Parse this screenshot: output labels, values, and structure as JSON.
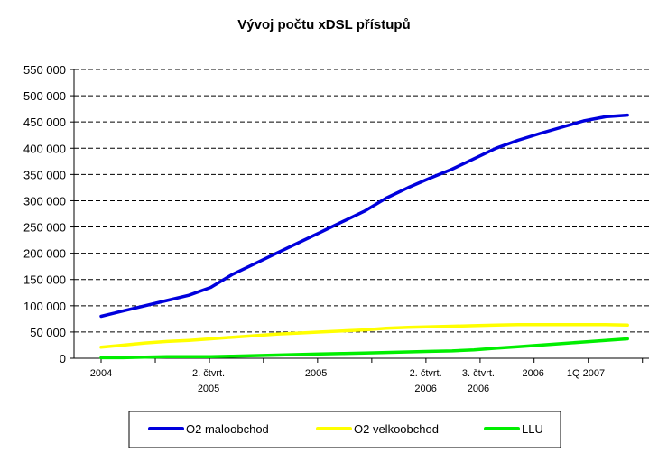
{
  "chart_data": {
    "type": "line",
    "title": "Vývoj počtu xDSL přístupů",
    "xlabel": "",
    "ylabel": "",
    "ylim": [
      0,
      550000
    ],
    "yticks": [
      {
        "value": 0,
        "label": "0"
      },
      {
        "value": 50000,
        "label": "50 000"
      },
      {
        "value": 100000,
        "label": "100 000"
      },
      {
        "value": 150000,
        "label": "150 000"
      },
      {
        "value": 200000,
        "label": "200 000"
      },
      {
        "value": 250000,
        "label": "250 000"
      },
      {
        "value": 300000,
        "label": "300 000"
      },
      {
        "value": 350000,
        "label": "350 000"
      },
      {
        "value": 400000,
        "label": "400 000"
      },
      {
        "value": 450000,
        "label": "450 000"
      },
      {
        "value": 500000,
        "label": "500 000"
      },
      {
        "value": 550000,
        "label": "550 000"
      }
    ],
    "grid": "horizontal dashed",
    "categories": [
      "2004",
      "",
      "",
      "",
      "2. čtvrt. 2005",
      "",
      "",
      "",
      "",
      "2005",
      "",
      "",
      "",
      "",
      "2. čtvrt. 2006",
      "",
      "3. čtvrt. 2006",
      "",
      "",
      "2006",
      "",
      "1Q 2007",
      "",
      "",
      ""
    ],
    "x_tick_labels": [
      {
        "index": 0,
        "lines": [
          "2004"
        ]
      },
      {
        "index": 4.9,
        "lines": [
          "2. čtvrt.",
          "2005"
        ]
      },
      {
        "index": 9.8,
        "lines": [
          "2005"
        ]
      },
      {
        "index": 14.8,
        "lines": [
          "2. čtvrt.",
          "2006"
        ]
      },
      {
        "index": 17.2,
        "lines": [
          "3. čtvrt.",
          "2006"
        ]
      },
      {
        "index": 19.7,
        "lines": [
          "2006"
        ]
      },
      {
        "index": 22.1,
        "lines": [
          "1Q 2007"
        ]
      }
    ],
    "x_tick_marks": [
      0,
      2.47,
      4.94,
      7.4,
      9.87,
      12.34,
      14.81,
      17.28,
      19.74,
      22.21,
      24.68
    ],
    "series": [
      {
        "name": "O2  maloobchod",
        "color": "#0000dd",
        "values": [
          80000,
          90000,
          100000,
          110000,
          120000,
          135000,
          160000,
          180000,
          200000,
          220000,
          240000,
          260000,
          280000,
          305000,
          325000,
          343000,
          360000,
          380000,
          400000,
          415000,
          428000,
          440000,
          452000,
          460000,
          463000
        ]
      },
      {
        "name": "O2  velkoobchod",
        "color": "#ffff00",
        "values": [
          21000,
          25000,
          29000,
          32000,
          34000,
          37000,
          40000,
          43000,
          46000,
          48000,
          50000,
          52000,
          54000,
          57000,
          59000,
          60000,
          61000,
          62000,
          63000,
          64000,
          64000,
          64000,
          64000,
          64000,
          63000
        ]
      },
      {
        "name": "LLU",
        "color": "#00ee00",
        "values": [
          1000,
          1000,
          2000,
          3000,
          3000,
          3000,
          4000,
          5000,
          6000,
          7000,
          8000,
          9000,
          10000,
          11000,
          12000,
          13000,
          14000,
          16000,
          19000,
          22000,
          25000,
          28000,
          31000,
          34000,
          37000
        ]
      }
    ],
    "legend_position": "bottom"
  }
}
